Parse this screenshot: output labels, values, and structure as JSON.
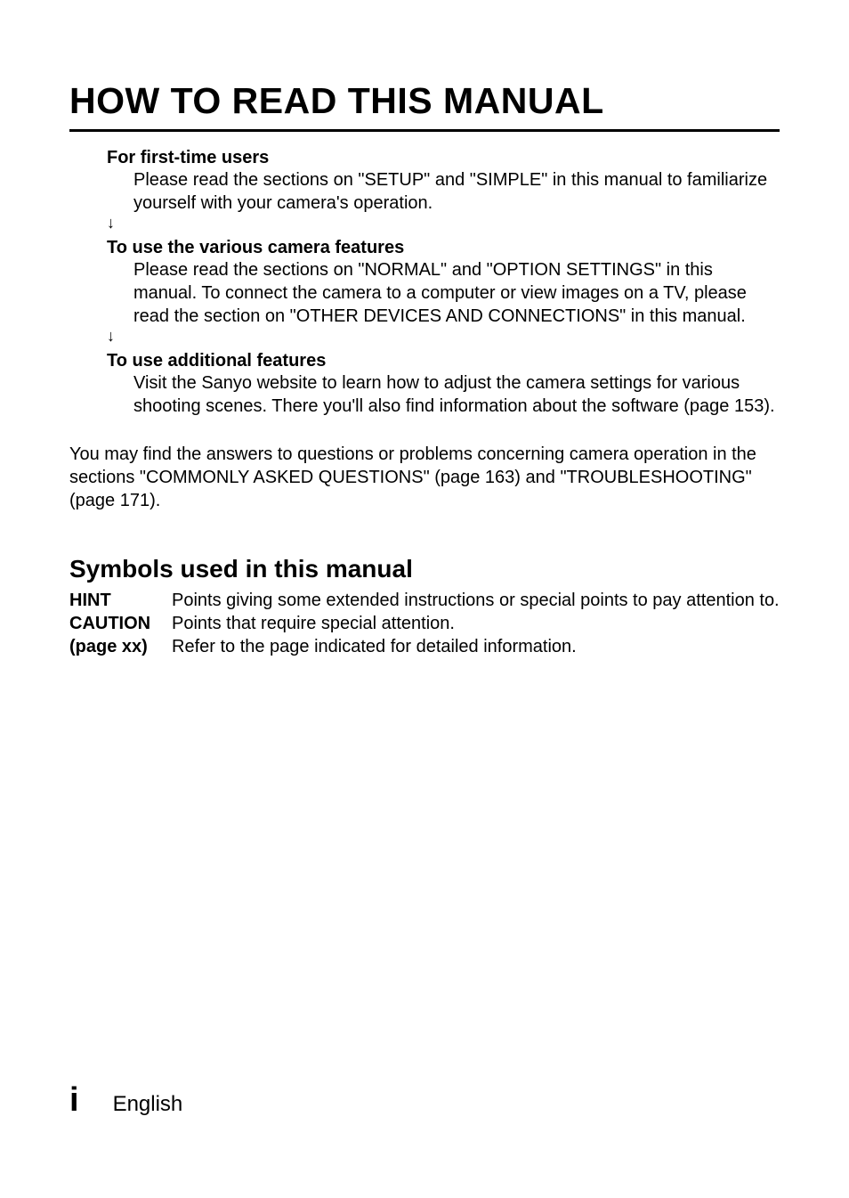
{
  "title": "HOW TO READ THIS MANUAL",
  "sections": [
    {
      "heading": "For first-time users",
      "body": "Please read the sections on \"SETUP\" and \"SIMPLE\" in this manual to familiarize yourself with your camera's operation.",
      "arrow": "↓"
    },
    {
      "heading": "To use the various camera features",
      "body": "Please read the sections on \"NORMAL\" and \"OPTION SETTINGS\" in this manual. To connect the camera to a computer or view images on a TV, please read the section on \"OTHER DEVICES AND CONNECTIONS\" in this manual.",
      "arrow": "↓"
    },
    {
      "heading": "To use additional features",
      "body": "Visit the Sanyo website to learn how to adjust the camera settings for various shooting scenes. There you'll also find information about the software (page 153).",
      "arrow": ""
    }
  ],
  "footer_paragraph": "You may find the answers to questions or problems concerning camera operation in the sections \"COMMONLY ASKED QUESTIONS\" (page 163) and \"TROUBLESHOOTING\" (page 171).",
  "subtitle": "Symbols used in this manual",
  "symbols": [
    {
      "label": "HINT",
      "desc": "Points giving some extended instructions or special points to pay attention to."
    },
    {
      "label": "CAUTION",
      "desc": "Points that require special attention."
    },
    {
      "label": "(page xx)",
      "desc": "Refer to the page indicated for detailed information."
    }
  ],
  "page_number": "i",
  "page_language": "English",
  "colors": {
    "text": "#000000",
    "background": "#ffffff",
    "rule": "#000000"
  },
  "typography": {
    "title_fontsize": 41,
    "heading_fontsize": 20,
    "body_fontsize": 20,
    "subtitle_fontsize": 28,
    "page_number_fontsize": 38,
    "page_lang_fontsize": 24,
    "font_family": "Arial, Helvetica, sans-serif"
  }
}
